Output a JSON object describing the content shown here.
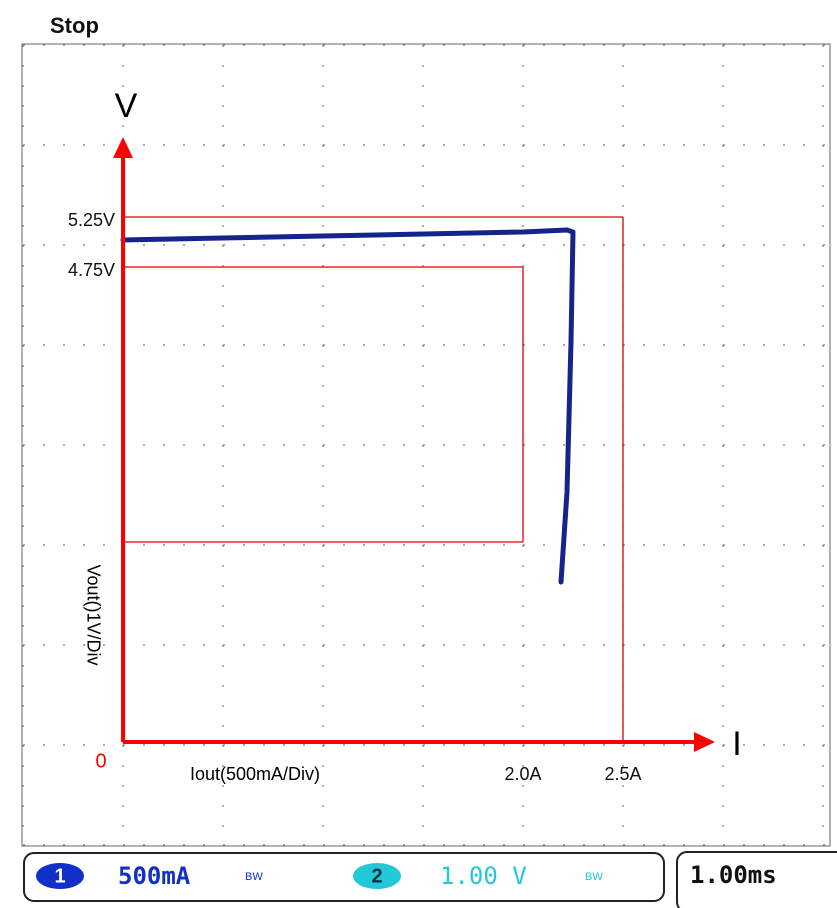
{
  "chart_data": {
    "type": "line",
    "x_label": "Iout(500mA/Div)",
    "y_label": "Vout()1V/Div",
    "x_axis_name": "I",
    "y_axis_name": "V",
    "x": [
      0,
      1,
      2,
      2.22,
      2.25,
      2.24,
      2.22,
      2.19
    ],
    "values": [
      5.02,
      5.06,
      5.1,
      5.12,
      5.1,
      4.0,
      2.5,
      1.6
    ],
    "color": "#14248a",
    "xlim": [
      -0.5,
      3.5
    ],
    "ylim": [
      -1,
      7
    ],
    "xticks": [
      {
        "value": 2,
        "label": "2.0A"
      },
      {
        "value": 2.5,
        "label": "2.5A"
      }
    ],
    "yticks": [
      0,
      {
        "value": 5.25,
        "label": "5.25V"
      },
      {
        "value": 4.75,
        "label": "4.75V"
      }
    ],
    "boxes": [
      {
        "xlim": [
          0,
          2.5
        ],
        "ylim": [
          0,
          5.25
        ]
      },
      {
        "xlim": [
          0,
          2
        ],
        "ylim": [
          2,
          4.75
        ]
      }
    ],
    "box_color": "#e00000"
  },
  "scope": {
    "status": "Stop",
    "channels": [
      {
        "number": "1",
        "scale": "500mA",
        "bw": "BW"
      },
      {
        "number": "2",
        "scale": "1.00 V",
        "bw": "BW"
      }
    ],
    "timebase": "1.00ms"
  }
}
